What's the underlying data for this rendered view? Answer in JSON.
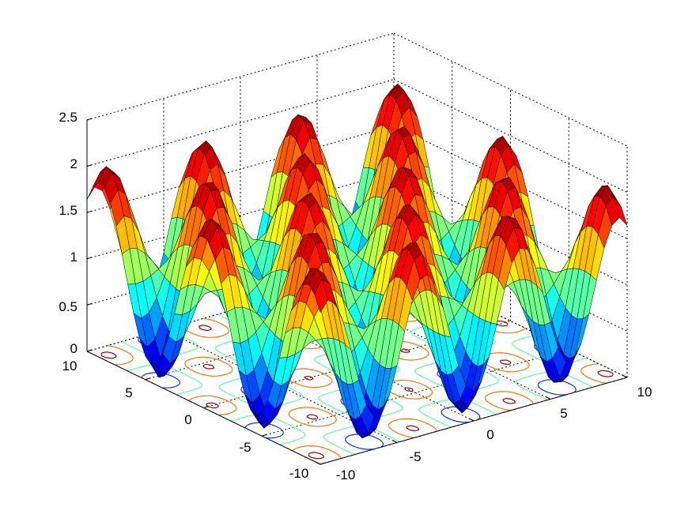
{
  "chart_data": {
    "type": "surface",
    "plot_style": "surface with contour plot beneath (surfc)",
    "colormap": "jet",
    "shading": "faceted",
    "grid": true,
    "xlim": [
      -10,
      10
    ],
    "ylim": [
      -10,
      10
    ],
    "zlim": [
      0,
      2.5
    ],
    "x_ticks": [
      "-10",
      "-5",
      "0",
      "5",
      "10"
    ],
    "y_ticks": [
      "-10",
      "-5",
      "0",
      "5",
      "10"
    ],
    "z_ticks": [
      "0",
      "0.5",
      "1",
      "1.5",
      "2",
      "2.5"
    ],
    "x_tick_values": [
      -10,
      -5,
      0,
      5,
      10
    ],
    "y_tick_values": [
      -10,
      -5,
      0,
      5,
      10
    ],
    "z_tick_values": [
      0,
      0.5,
      1,
      1.5,
      2,
      2.5
    ],
    "title": "",
    "xlabel": "",
    "ylabel": "",
    "zlabel": ""
  }
}
